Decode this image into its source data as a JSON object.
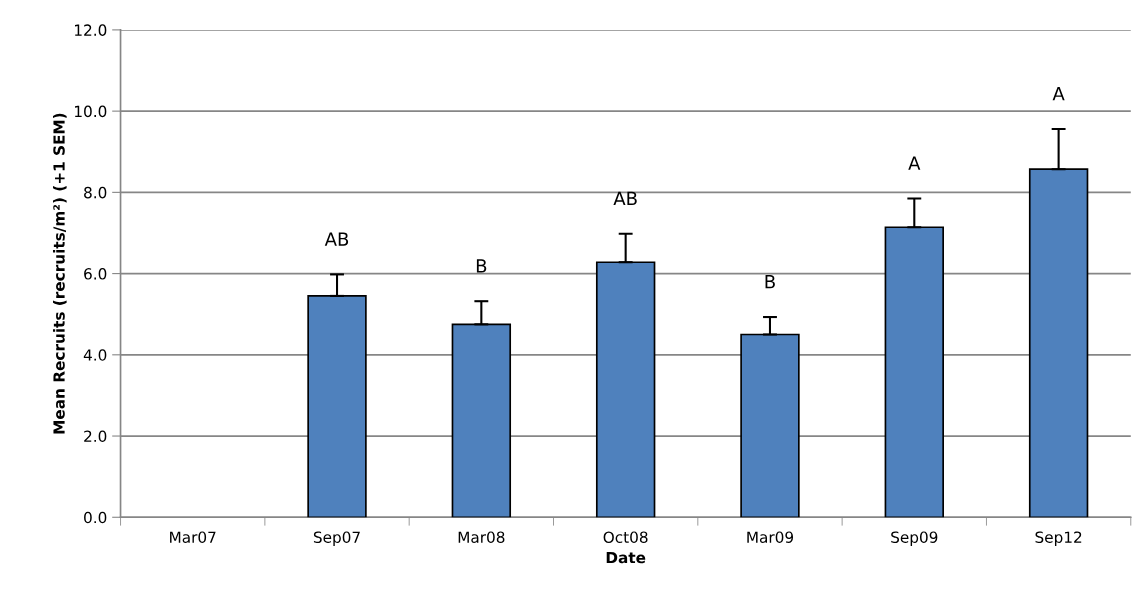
{
  "chart_data": {
    "type": "bar",
    "categories": [
      "Mar07",
      "Sep07",
      "Mar08",
      "Oct08",
      "Mar09",
      "Sep09",
      "Sep12"
    ],
    "values": [
      null,
      5.45,
      4.75,
      6.28,
      4.5,
      7.14,
      8.57
    ],
    "errors": [
      null,
      [
        5.45,
        5.98
      ],
      [
        4.75,
        5.32
      ],
      [
        6.28,
        6.98
      ],
      [
        4.5,
        4.93
      ],
      [
        7.14,
        7.85
      ],
      [
        8.57,
        9.56
      ]
    ],
    "color": "#4f81bd",
    "xlabel": "Date",
    "ylabel": "Mean Recruits (recruits/m²) (+1 SEM)",
    "ylim": [
      0,
      12
    ],
    "yticks": [
      {
        "value": 0,
        "label": "0.0"
      },
      {
        "value": 2,
        "label": "2.0"
      },
      {
        "value": 4,
        "label": "4.0"
      },
      {
        "value": 6,
        "label": "6.0"
      },
      {
        "value": 8,
        "label": "8.0"
      },
      {
        "value": 10,
        "label": "10.0"
      },
      {
        "value": 12,
        "label": "12.0"
      }
    ],
    "grid": "y",
    "annotations": [
      "AB",
      "B",
      "AB",
      "B",
      "A",
      "A"
    ]
  }
}
